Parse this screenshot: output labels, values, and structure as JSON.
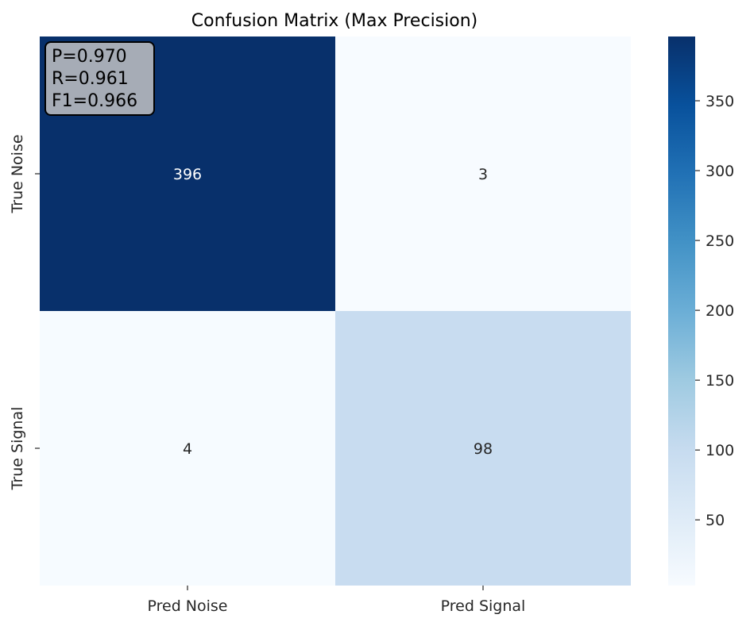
{
  "chart_data": {
    "type": "heatmap",
    "title": "Confusion Matrix (Max Precision)",
    "x_categories": [
      "Pred Noise",
      "Pred Signal"
    ],
    "y_categories": [
      "True Noise",
      "True Signal"
    ],
    "values": [
      [
        396,
        3
      ],
      [
        4,
        98
      ]
    ],
    "colormap": "Blues",
    "colorbar": {
      "range": [
        3,
        396
      ],
      "ticks": [
        50,
        100,
        150,
        200,
        250,
        300,
        350
      ]
    },
    "annotation": {
      "lines": [
        "P=0.970",
        "R=0.961",
        "F1=0.966"
      ],
      "placement": "top-left",
      "box_color": "#a6acb6"
    },
    "grid": false
  }
}
